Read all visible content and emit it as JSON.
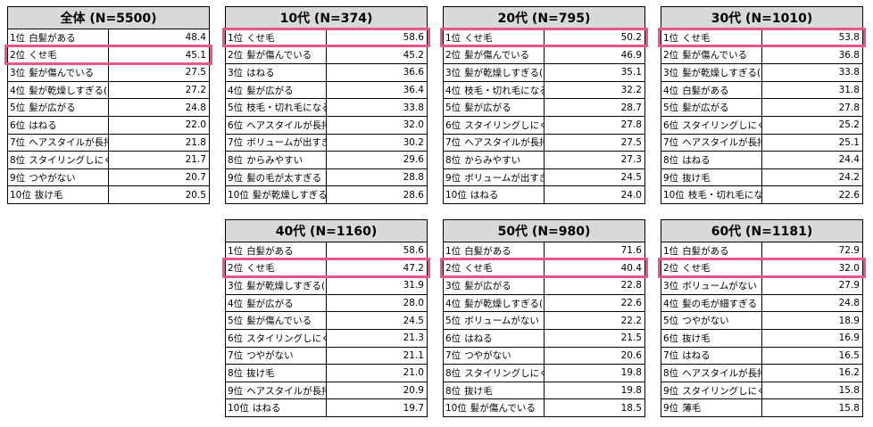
{
  "highlight_color": "#e8578c",
  "header_bg": "#d9d9d9",
  "chart_data": {
    "type": "table",
    "tables": [
      {
        "title": "全体 (N=5500)",
        "rows": [
          [
            "1位",
            "白髪がある",
            "48.4"
          ],
          [
            "2位",
            "くせ毛",
            "45.1"
          ],
          [
            "3位",
            "髪が傷んでいる",
            "27.5"
          ],
          [
            "4位",
            "髪が乾燥しすぎる(パサつく)",
            "27.2"
          ],
          [
            "5位",
            "髪が広がる",
            "24.8"
          ],
          [
            "6位",
            "はねる",
            "22.0"
          ],
          [
            "7位",
            "ヘアスタイルが長持ちしない",
            "21.8"
          ],
          [
            "8位",
            "スタイリングしにくい",
            "21.7"
          ],
          [
            "9位",
            "つやがない",
            "20.7"
          ],
          [
            "10位",
            "抜け毛",
            "20.5"
          ]
        ]
      },
      {
        "title": "10代 (N=374)",
        "rows": [
          [
            "1位",
            "くせ毛",
            "58.6"
          ],
          [
            "2位",
            "髪が傷んでいる",
            "45.2"
          ],
          [
            "3位",
            "はねる",
            "36.6"
          ],
          [
            "4位",
            "髪が広がる",
            "36.4"
          ],
          [
            "5位",
            "枝毛・切れ毛になる",
            "33.8"
          ],
          [
            "6位",
            "ヘアスタイルが長持ちしない",
            "32.0"
          ],
          [
            "7位",
            "ボリュームが出すぎる",
            "30.2"
          ],
          [
            "8位",
            "からみやすい",
            "29.6"
          ],
          [
            "9位",
            "髪の毛が太すぎる",
            "28.8"
          ],
          [
            "10位",
            "髪が乾燥しすぎる(パサつく)",
            "28.6"
          ]
        ]
      },
      {
        "title": "20代 (N=795)",
        "rows": [
          [
            "1位",
            "くせ毛",
            "50.2"
          ],
          [
            "2位",
            "髪が傷んでいる",
            "46.9"
          ],
          [
            "3位",
            "髪が乾燥しすぎる(パサつく)",
            "35.1"
          ],
          [
            "4位",
            "枝毛・切れ毛になる",
            "32.2"
          ],
          [
            "5位",
            "髪が広がる",
            "28.7"
          ],
          [
            "6位",
            "スタイリングしにくい",
            "27.8"
          ],
          [
            "7位",
            "ヘアスタイルが長持ちしない",
            "27.5"
          ],
          [
            "8位",
            "からみやすい",
            "27.3"
          ],
          [
            "9位",
            "ボリュームが出すぎる",
            "24.5"
          ],
          [
            "10位",
            "はねる",
            "24.0"
          ]
        ]
      },
      {
        "title": "30代 (N=1010)",
        "rows": [
          [
            "1位",
            "くせ毛",
            "53.8"
          ],
          [
            "2位",
            "髪が傷んでいる",
            "36.8"
          ],
          [
            "3位",
            "髪が乾燥しすぎる(パサつく)",
            "33.8"
          ],
          [
            "4位",
            "白髪がある",
            "31.8"
          ],
          [
            "5位",
            "髪が広がる",
            "27.8"
          ],
          [
            "6位",
            "スタイリングしにくい",
            "25.2"
          ],
          [
            "7位",
            "ヘアスタイルが長持ちしない",
            "25.1"
          ],
          [
            "8位",
            "はねる",
            "24.4"
          ],
          [
            "9位",
            "抜け毛",
            "24.2"
          ],
          [
            "10位",
            "枝毛・切れ毛になる",
            "22.6"
          ]
        ]
      },
      {
        "title": "40代 (N=1160)",
        "rows": [
          [
            "1位",
            "白髪がある",
            "58.6"
          ],
          [
            "2位",
            "くせ毛",
            "47.2"
          ],
          [
            "3位",
            "髪が乾燥しすぎる(パサつく)",
            "31.9"
          ],
          [
            "4位",
            "髪が広がる",
            "28.0"
          ],
          [
            "5位",
            "髪が傷んでいる",
            "24.5"
          ],
          [
            "6位",
            "スタイリングしにくい",
            "21.3"
          ],
          [
            "7位",
            "つやがない",
            "21.1"
          ],
          [
            "8位",
            "抜け毛",
            "21.0"
          ],
          [
            "9位",
            "ヘアスタイルが長持ちしない",
            "20.9"
          ],
          [
            "10位",
            "はねる",
            "19.7"
          ]
        ]
      },
      {
        "title": "50代 (N=980)",
        "rows": [
          [
            "1位",
            "白髪がある",
            "71.6"
          ],
          [
            "2位",
            "くせ毛",
            "40.4"
          ],
          [
            "3位",
            "髪が広がる",
            "22.8"
          ],
          [
            "4位",
            "髪が乾燥しすぎる(パサつく)",
            "22.6"
          ],
          [
            "5位",
            "ボリュームがない",
            "22.2"
          ],
          [
            "6位",
            "はねる",
            "21.5"
          ],
          [
            "7位",
            "つやがない",
            "20.6"
          ],
          [
            "8位",
            "スタイリングしにくい",
            "19.8"
          ],
          [
            "8位",
            "抜け毛",
            "19.8"
          ],
          [
            "10位",
            "髪が傷んでいる",
            "18.5"
          ]
        ]
      },
      {
        "title": "60代 (N=1181)",
        "rows": [
          [
            "1位",
            "白髪がある",
            "72.9"
          ],
          [
            "2位",
            "くせ毛",
            "32.0"
          ],
          [
            "3位",
            "ボリュームがない",
            "27.9"
          ],
          [
            "4位",
            "髪の毛が細すぎる",
            "24.8"
          ],
          [
            "5位",
            "つやがない",
            "18.9"
          ],
          [
            "6位",
            "抜け毛",
            "16.9"
          ],
          [
            "7位",
            "はねる",
            "16.5"
          ],
          [
            "8位",
            "ヘアスタイルが長持ちしない",
            "16.2"
          ],
          [
            "9位",
            "スタイリングしにくい",
            "15.8"
          ],
          [
            "9位",
            "薄毛",
            "15.8"
          ]
        ]
      }
    ],
    "highlighted_item": "くせ毛"
  }
}
